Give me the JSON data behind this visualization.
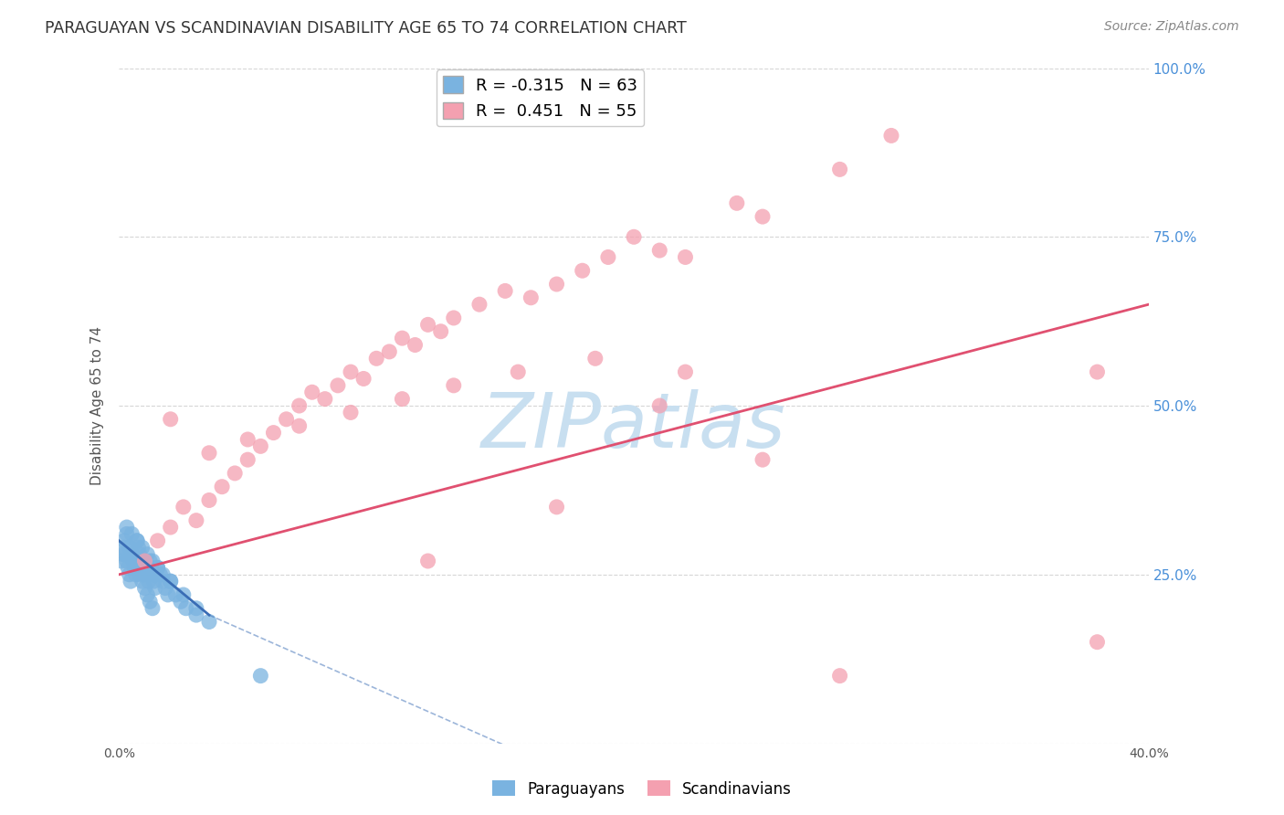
{
  "title": "PARAGUAYAN VS SCANDINAVIAN DISABILITY AGE 65 TO 74 CORRELATION CHART",
  "source": "Source: ZipAtlas.com",
  "ylabel": "Disability Age 65 to 74",
  "x_min": 0.0,
  "x_max": 40.0,
  "y_min": 0.0,
  "y_max": 100.0,
  "y_ticks_right": [
    25.0,
    50.0,
    75.0,
    100.0
  ],
  "y_tick_labels_right": [
    "25.0%",
    "50.0%",
    "75.0%",
    "100.0%"
  ],
  "paraguayan_R": -0.315,
  "paraguayan_N": 63,
  "scandinavian_R": 0.451,
  "scandinavian_N": 55,
  "paraguayan_color": "#7ab3e0",
  "scandinavian_color": "#f4a0b0",
  "paraguayan_line_color": "#3a6db5",
  "scandinavian_line_color": "#e05070",
  "watermark": "ZIPatlas",
  "watermark_color": "#c8dff0",
  "background_color": "#ffffff",
  "grid_color": "#cccccc",
  "title_color": "#333333",
  "axis_label_color": "#555555",
  "right_tick_color": "#4a90d9",
  "par_line_x0": 0.0,
  "par_line_y0": 30.0,
  "par_line_x1": 3.5,
  "par_line_y1": 19.0,
  "par_dash_x1": 16.0,
  "par_dash_y1": -2.0,
  "sca_line_x0": 0.0,
  "sca_line_y0": 25.0,
  "sca_line_x1": 40.0,
  "sca_line_y1": 65.0,
  "paraguayan_x": [
    0.1,
    0.15,
    0.2,
    0.25,
    0.3,
    0.35,
    0.4,
    0.45,
    0.5,
    0.55,
    0.6,
    0.65,
    0.7,
    0.75,
    0.8,
    0.85,
    0.9,
    0.95,
    1.0,
    1.05,
    1.1,
    1.15,
    1.2,
    1.25,
    1.3,
    1.35,
    1.4,
    1.5,
    1.6,
    1.7,
    1.8,
    1.9,
    2.0,
    2.2,
    2.4,
    2.6,
    3.0,
    3.5,
    0.2,
    0.3,
    0.4,
    0.5,
    0.6,
    0.7,
    0.8,
    0.9,
    1.0,
    1.1,
    1.2,
    1.3,
    1.4,
    0.3,
    0.5,
    0.7,
    0.9,
    1.1,
    1.3,
    1.5,
    1.7,
    2.0,
    2.5,
    3.0,
    5.5
  ],
  "paraguayan_y": [
    27,
    28,
    29,
    28,
    27,
    26,
    25,
    24,
    28,
    27,
    26,
    25,
    30,
    29,
    28,
    27,
    26,
    25,
    27,
    26,
    25,
    24,
    27,
    26,
    25,
    24,
    23,
    26,
    25,
    24,
    23,
    22,
    24,
    22,
    21,
    20,
    19,
    18,
    30,
    31,
    29,
    28,
    27,
    26,
    25,
    24,
    23,
    22,
    21,
    20,
    25,
    32,
    31,
    30,
    29,
    28,
    27,
    26,
    25,
    24,
    22,
    20,
    10
  ],
  "scandinavian_x": [
    1.0,
    1.5,
    2.0,
    2.5,
    3.0,
    3.5,
    4.0,
    4.5,
    5.0,
    5.5,
    6.0,
    6.5,
    7.0,
    7.5,
    8.0,
    8.5,
    9.0,
    9.5,
    10.0,
    10.5,
    11.0,
    11.5,
    12.0,
    12.5,
    13.0,
    14.0,
    15.0,
    16.0,
    17.0,
    18.0,
    19.0,
    20.0,
    21.0,
    22.0,
    24.0,
    25.0,
    28.0,
    38.0,
    2.0,
    3.5,
    5.0,
    7.0,
    9.0,
    11.0,
    13.0,
    15.5,
    18.5,
    21.0,
    25.0,
    30.0,
    12.0,
    17.0,
    22.0,
    28.0,
    38.0
  ],
  "scandinavian_y": [
    27,
    30,
    32,
    35,
    33,
    36,
    38,
    40,
    42,
    44,
    46,
    48,
    50,
    52,
    51,
    53,
    55,
    54,
    57,
    58,
    60,
    59,
    62,
    61,
    63,
    65,
    67,
    66,
    68,
    70,
    72,
    75,
    73,
    72,
    80,
    78,
    85,
    15,
    48,
    43,
    45,
    47,
    49,
    51,
    53,
    55,
    57,
    50,
    42,
    90,
    27,
    35,
    55,
    10,
    55
  ]
}
